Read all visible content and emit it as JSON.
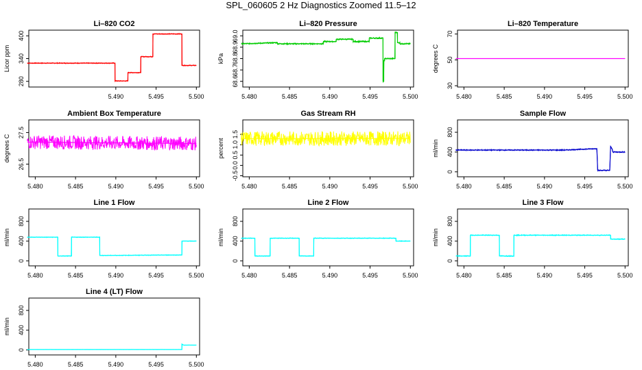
{
  "title": "SPL_060605  2 Hz Diagnostics Zoomed 11.5–12",
  "chart_data": [
    {
      "type": "line",
      "title": "Li–820 CO2",
      "xlabel": "",
      "ylabel": "Licor ppm",
      "xlim": [
        5.4792,
        5.5004
      ],
      "ylim": [
        265,
        415
      ],
      "xticks": [
        "5.490",
        "5.495",
        "5.500"
      ],
      "xtick_values": [
        5.49,
        5.495,
        5.5
      ],
      "yticks": [
        "280",
        "340",
        "400"
      ],
      "ytick_values": [
        280,
        340,
        400
      ],
      "color": "#ff0000",
      "noise": 1.2,
      "series": [
        {
          "x": [
            5.479,
            5.4899,
            5.4899,
            5.4915,
            5.4915,
            5.4931,
            5.4931,
            5.4946,
            5.4946,
            5.4982,
            5.4982,
            5.5
          ],
          "y": [
            328,
            328,
            281,
            281,
            303,
            303,
            345,
            345,
            405,
            405,
            322,
            322
          ]
        }
      ]
    },
    {
      "type": "line",
      "title": "Li–820 Pressure",
      "xlabel": "",
      "ylabel": "kPa",
      "xlim": [
        5.4792,
        5.5004
      ],
      "ylim": [
        68.55,
        69.05
      ],
      "xticks": [
        "5.480",
        "5.485",
        "5.490",
        "5.495",
        "5.500"
      ],
      "xtick_values": [
        5.48,
        5.485,
        5.49,
        5.495,
        5.5
      ],
      "yticks": [
        "68.6",
        "68.8",
        "69.0"
      ],
      "ytick_values": [
        68.6,
        68.8,
        69.0
      ],
      "ytick_minor": [
        "68.7",
        "68.9"
      ],
      "ytick_minor_values": [
        68.7,
        68.9
      ],
      "color": "#00cc00",
      "noise": 0.006,
      "series": [
        {
          "x": [
            5.479,
            5.4835,
            5.4835,
            5.4892,
            5.4892,
            5.4908,
            5.4908,
            5.4929,
            5.4929,
            5.4949,
            5.4949,
            5.4966,
            5.4966,
            5.4967,
            5.4967,
            5.4968,
            5.4968,
            5.4981,
            5.4981,
            5.4984,
            5.4984,
            5.4987,
            5.4987,
            5.5
          ],
          "y": [
            68.93,
            68.94,
            68.93,
            68.93,
            68.95,
            68.95,
            68.97,
            68.97,
            68.95,
            68.95,
            68.98,
            68.98,
            68.6,
            68.6,
            68.78,
            68.78,
            68.8,
            68.8,
            69.03,
            69.03,
            68.94,
            68.94,
            68.93,
            68.93
          ]
        }
      ]
    },
    {
      "type": "line",
      "title": "Li–820 Temperature",
      "xlabel": "",
      "ylabel": "degrees C",
      "xlim": [
        5.4792,
        5.5004
      ],
      "ylim": [
        29,
        73
      ],
      "xticks": [
        "5.480",
        "5.485",
        "5.490",
        "5.495",
        "5.500"
      ],
      "xtick_values": [
        5.48,
        5.485,
        5.49,
        5.495,
        5.5
      ],
      "yticks": [
        "30",
        "50",
        "70"
      ],
      "ytick_values": [
        30,
        50,
        70
      ],
      "color": "#ff00ff",
      "noise": 0,
      "series": [
        {
          "x": [
            5.479,
            5.5
          ],
          "y": [
            51,
            51
          ]
        }
      ]
    },
    {
      "type": "line",
      "title": "Ambient Box Temperature",
      "xlabel": "",
      "ylabel": "degrees C",
      "xlim": [
        5.4792,
        5.5004
      ],
      "ylim": [
        26.1,
        27.9
      ],
      "xticks": [
        "5.480",
        "5.485",
        "5.490",
        "5.495",
        "5.500"
      ],
      "xtick_values": [
        5.48,
        5.485,
        5.49,
        5.495,
        5.5
      ],
      "yticks": [
        "26.5",
        "27.5"
      ],
      "ytick_values": [
        26.5,
        27.5
      ],
      "color": "#ff00ff",
      "noise": 0.22,
      "series": [
        {
          "x": [
            5.479,
            5.5
          ],
          "y": [
            27.2,
            27.15
          ]
        }
      ]
    },
    {
      "type": "line",
      "title": "Gas Stream RH",
      "xlabel": "",
      "ylabel": "percent",
      "xlim": [
        5.4792,
        5.5004
      ],
      "ylim": [
        -0.55,
        2.2
      ],
      "xticks": [
        "5.480",
        "5.485",
        "5.490",
        "5.495",
        "5.500"
      ],
      "xtick_values": [
        5.48,
        5.485,
        5.49,
        5.495,
        5.5
      ],
      "yticks": [
        "-0.5",
        "0.5",
        "1.5"
      ],
      "ytick_values": [
        -0.5,
        0.5,
        1.5
      ],
      "ytick_minor": [
        "0.0",
        "1.0"
      ],
      "ytick_minor_values": [
        0.0,
        1.0
      ],
      "color": "#ffff00",
      "noise": 0.35,
      "series": [
        {
          "x": [
            5.479,
            5.5
          ],
          "y": [
            1.3,
            1.3
          ]
        }
      ]
    },
    {
      "type": "line",
      "title": "Sample Flow",
      "xlabel": "",
      "ylabel": "ml/min",
      "xlim": [
        5.4792,
        5.5004
      ],
      "ylim": [
        -100,
        1050
      ],
      "xticks": [
        "5.480",
        "5.485",
        "5.490",
        "5.495",
        "5.500"
      ],
      "xtick_values": [
        5.48,
        5.485,
        5.49,
        5.495,
        5.5
      ],
      "yticks": [
        "0",
        "400",
        "800"
      ],
      "ytick_values": [
        0,
        400,
        800
      ],
      "color": "#0000cc",
      "noise": 12,
      "series": [
        {
          "x": [
            5.479,
            5.4925,
            5.4965,
            5.4966,
            5.4981,
            5.4982,
            5.4984,
            5.4985,
            5.5
          ],
          "y": [
            440,
            440,
            470,
            30,
            30,
            510,
            460,
            400,
            400
          ]
        }
      ]
    },
    {
      "type": "line",
      "title": "Line 1 Flow",
      "xlabel": "",
      "ylabel": "ml/min",
      "xlim": [
        5.4792,
        5.5004
      ],
      "ylim": [
        -100,
        1050
      ],
      "xticks": [
        "5.480",
        "5.485",
        "5.490",
        "5.495",
        "5.500"
      ],
      "xtick_values": [
        5.48,
        5.485,
        5.49,
        5.495,
        5.5
      ],
      "yticks": [
        "0",
        "400",
        "800"
      ],
      "ytick_values": [
        0,
        400,
        800
      ],
      "color": "#00ffff",
      "noise": 7,
      "series": [
        {
          "x": [
            5.479,
            5.4828,
            5.4828,
            5.4845,
            5.4845,
            5.488,
            5.488,
            5.4982,
            5.4982,
            5.5
          ],
          "y": [
            480,
            480,
            100,
            100,
            480,
            480,
            110,
            120,
            400,
            400
          ]
        }
      ]
    },
    {
      "type": "line",
      "title": "Line 2 Flow",
      "xlabel": "",
      "ylabel": "ml/min",
      "xlim": [
        5.4792,
        5.5004
      ],
      "ylim": [
        -100,
        1050
      ],
      "xticks": [
        "5.480",
        "5.485",
        "5.490",
        "5.495",
        "5.500"
      ],
      "xtick_values": [
        5.48,
        5.485,
        5.49,
        5.495,
        5.5
      ],
      "yticks": [
        "0",
        "400",
        "800"
      ],
      "ytick_values": [
        0,
        400,
        800
      ],
      "color": "#00ffff",
      "noise": 7,
      "series": [
        {
          "x": [
            5.479,
            5.4807,
            5.4807,
            5.4826,
            5.4826,
            5.4862,
            5.4862,
            5.488,
            5.488,
            5.4982,
            5.4982,
            5.5
          ],
          "y": [
            460,
            460,
            100,
            100,
            460,
            460,
            100,
            100,
            460,
            460,
            400,
            400
          ]
        }
      ]
    },
    {
      "type": "line",
      "title": "Line 3 Flow",
      "xlabel": "",
      "ylabel": "ml/min",
      "xlim": [
        5.4792,
        5.5004
      ],
      "ylim": [
        -100,
        1050
      ],
      "xticks": [
        "5.480",
        "5.485",
        "5.490",
        "5.495",
        "5.500"
      ],
      "xtick_values": [
        5.48,
        5.485,
        5.49,
        5.495,
        5.5
      ],
      "yticks": [
        "0",
        "400",
        "800"
      ],
      "ytick_values": [
        0,
        400,
        800
      ],
      "color": "#00ffff",
      "noise": 10,
      "series": [
        {
          "x": [
            5.479,
            5.4808,
            5.4808,
            5.4844,
            5.4844,
            5.4862,
            5.4862,
            5.4982,
            5.4982,
            5.5
          ],
          "y": [
            100,
            100,
            520,
            520,
            100,
            100,
            520,
            520,
            440,
            440
          ]
        }
      ]
    },
    {
      "type": "line",
      "title": "Line 4 (LT) Flow",
      "xlabel": "",
      "ylabel": "ml/min",
      "xlim": [
        5.4792,
        5.5004
      ],
      "ylim": [
        -100,
        1050
      ],
      "xticks": [
        "5.480",
        "5.485",
        "5.490",
        "5.495",
        "5.500"
      ],
      "xtick_values": [
        5.48,
        5.485,
        5.49,
        5.495,
        5.5
      ],
      "yticks": [
        "0",
        "400",
        "800"
      ],
      "ytick_values": [
        0,
        400,
        800
      ],
      "color": "#00ffff",
      "noise": 2,
      "series": [
        {
          "x": [
            5.479,
            5.4982,
            5.4982,
            5.4984,
            5.5
          ],
          "y": [
            10,
            10,
            120,
            100,
            100
          ]
        }
      ]
    }
  ]
}
